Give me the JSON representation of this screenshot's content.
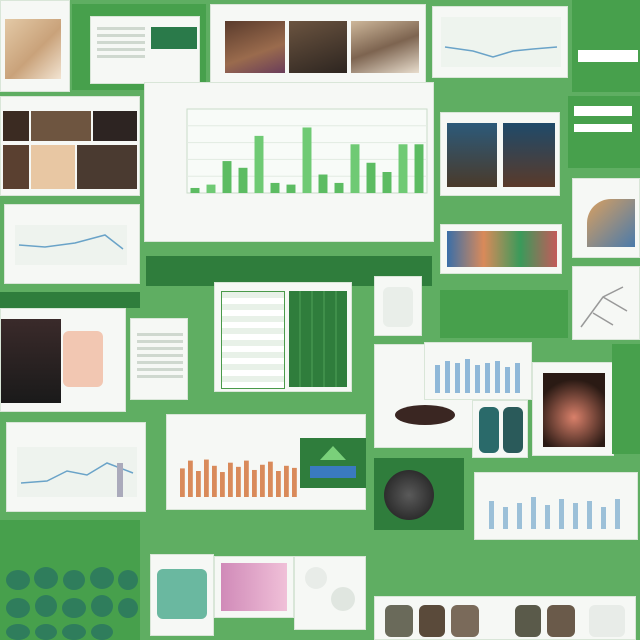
{
  "collage": {
    "center_chart": {
      "title": "",
      "bars": [
        0.06,
        0.1,
        0.38,
        0.3,
        0.68,
        0.12,
        0.1,
        0.78,
        0.22,
        0.12,
        0.58,
        0.36,
        0.25,
        0.58,
        0.58
      ]
    },
    "colors": {
      "background": "#5fae62",
      "accent": "#47a04c",
      "dark_accent": "#2f7d3c",
      "orange_bars": "#d98a5a"
    }
  }
}
